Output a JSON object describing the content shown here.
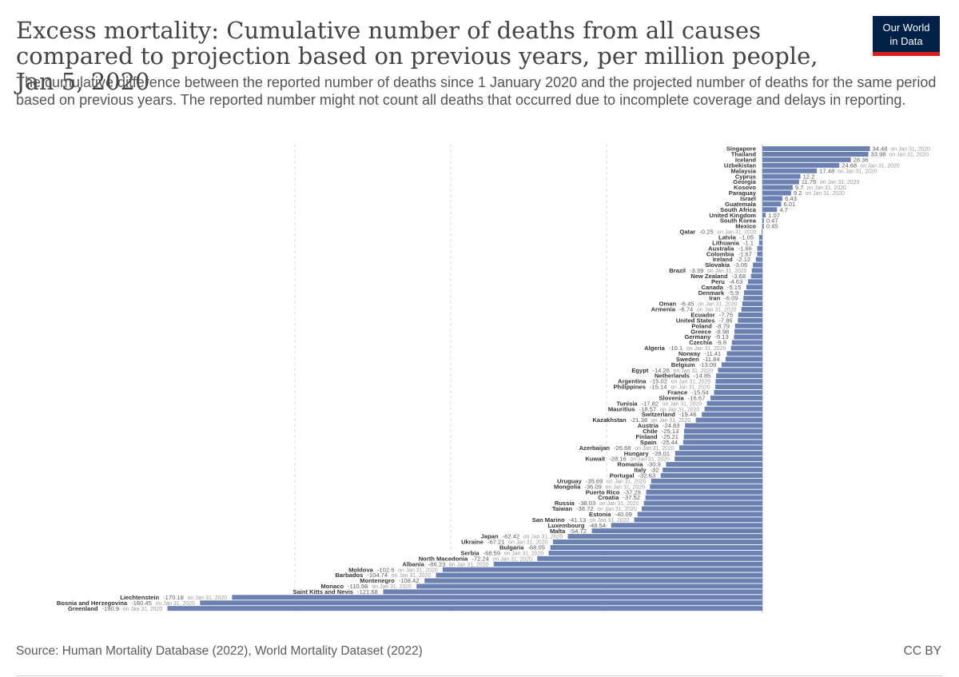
{
  "header": {
    "title": "Excess mortality: Cumulative number of deaths from all causes compared to projection based on previous years, per million people, Jan 5, 2020",
    "subtitle": "The cumulative difference between the reported number of deaths since 1 January 2020 and the projected number of deaths for the same period based on previous years. The reported number might not count all deaths that occurred due to incomplete coverage and delays in reporting.",
    "logo_line1": "Our World",
    "logo_line2": "in Data"
  },
  "footer": {
    "source": "Source: Human Mortality Database (2022), World Mortality Dataset (2022)",
    "license": "CC BY"
  },
  "colors": {
    "bar": "#6d80b2",
    "grid": "#dddddd",
    "label": "#333333",
    "value": "#5b5b5b",
    "note": "#999999",
    "logo_bg": "#002147",
    "logo_accent": "#dd1e1e"
  },
  "chart_data": {
    "type": "bar",
    "orientation": "horizontal",
    "grid": true,
    "grid_lines_at": [
      -150,
      -100,
      -50
    ],
    "xlim": [
      -190.9,
      34.48
    ],
    "categories": [
      "Singapore",
      "Thailand",
      "Iceland",
      "Uzbekistan",
      "Malaysia",
      "Cyprus",
      "Georgia",
      "Kosovo",
      "Paraguay",
      "Israel",
      "Guatemala",
      "South Africa",
      "United Kingdom",
      "South Korea",
      "Mexico",
      "Qatar",
      "Latvia",
      "Lithuania",
      "Australia",
      "Colombia",
      "Ireland",
      "Slovakia",
      "Brazil",
      "New Zealand",
      "Peru",
      "Canada",
      "Denmark",
      "Iran",
      "Oman",
      "Armenia",
      "Ecuador",
      "United States",
      "Poland",
      "Greece",
      "Germany",
      "Czechia",
      "Algeria",
      "Norway",
      "Sweden",
      "Belgium",
      "Egypt",
      "Netherlands",
      "Argentina",
      "Philippines",
      "France",
      "Slovenia",
      "Tunisia",
      "Mauritius",
      "Switzerland",
      "Kazakhstan",
      "Austria",
      "Chile",
      "Finland",
      "Spain",
      "Azerbaijan",
      "Hungary",
      "Kuwait",
      "Romania",
      "Italy",
      "Portugal",
      "Uruguay",
      "Mongolia",
      "Puerto Rico",
      "Croatia",
      "Russia",
      "Taiwan",
      "Estonia",
      "San Marino",
      "Luxembourg",
      "Malta",
      "Japan",
      "Ukraine",
      "Bulgaria",
      "Serbia",
      "North Macedonia",
      "Albania",
      "Moldova",
      "Barbados",
      "Montenegro",
      "Monaco",
      "Saint Kitts and Nevis",
      "Liechtenstein",
      "Bosnia and Herzegovina",
      "Greenland"
    ],
    "values": [
      34.48,
      33.98,
      28.36,
      24.68,
      17.48,
      12.2,
      11.76,
      9.7,
      9.2,
      6.43,
      6.01,
      4.7,
      1.07,
      0.47,
      0.45,
      -0.25,
      -1.05,
      -1.1,
      -1.66,
      -1.67,
      -2.12,
      -3.06,
      -3.39,
      -3.68,
      -4.63,
      -5.15,
      -5.9,
      -6.09,
      -6.45,
      -6.74,
      -7.75,
      -7.86,
      -8.79,
      -8.98,
      -9.13,
      -9.8,
      -10.1,
      -11.41,
      -11.84,
      -13.09,
      -14.26,
      -14.85,
      -15.02,
      -15.14,
      -15.54,
      -16.67,
      -17.82,
      -18.57,
      -19.46,
      -21.38,
      -24.83,
      -25.13,
      -25.21,
      -25.44,
      -26.68,
      -28.01,
      -28.16,
      -30.9,
      -32,
      -32.63,
      -35.69,
      -36.09,
      -37.29,
      -37.52,
      -38.03,
      -38.72,
      -40.09,
      -41.13,
      -48.54,
      -54.72,
      -62.42,
      -67.21,
      -68.05,
      -68.59,
      -72.24,
      -86.23,
      -102.6,
      -104.74,
      -108.42,
      -110.98,
      -121.68,
      -170.18,
      -180.45,
      -190.9
    ],
    "value_labels": [
      "34.48",
      "33.98",
      "28.36",
      "24.68",
      "17.48",
      "12.2",
      "11.76",
      "9.7",
      "9.2",
      "6.43",
      "6.01",
      "4.7",
      "1.07",
      "0.47",
      "0.45",
      "-0.25",
      "-1.05",
      "-1.1",
      "-1.66",
      "-1.67",
      "-2.12",
      "-3.06",
      "-3.39",
      "-3.68",
      "-4.63",
      "-5.15",
      "-5.9",
      "-6.09",
      "-6.45",
      "-6.74",
      "-7.75",
      "-7.86",
      "-8.79",
      "-8.98",
      "-9.13",
      "-9.8",
      "-10.1",
      "-11.41",
      "-11.84",
      "-13.09",
      "-14.26",
      "-14.85",
      "-15.02",
      "-15.14",
      "-15.54",
      "-16.67",
      "-17.82",
      "-18.57",
      "-19.46",
      "-21.38",
      "-24.83",
      "-25.13",
      "-25.21",
      "-25.44",
      "-26.68",
      "-28.01",
      "-28.16",
      "-30.9",
      "-32",
      "-32.63",
      "-35.69",
      "-36.09",
      "-37.29",
      "-37.52",
      "-38.03",
      "-38.72",
      "-40.09",
      "-41.13",
      "-48.54",
      "-54.72",
      "-62.42",
      "-67.21",
      "-68.05",
      "-68.59",
      "-72.24",
      "-86.23",
      "-102.6",
      "-104.74",
      "-108.42",
      "-110.98",
      "-121.68",
      "-170.18",
      "-180.45",
      "-190.9"
    ],
    "notes": [
      "on Jan 31, 2020",
      "on Jan 31, 2020",
      "",
      "on Jan 31, 2020",
      "on Jan 31, 2020",
      "",
      "on Jan 31, 2020",
      "on Jan 31, 2020",
      "on Jan 31, 2020",
      "",
      "",
      "",
      "",
      "",
      "",
      "on Jan 31, 2020",
      "",
      "",
      "",
      "",
      "",
      "",
      "on Jan 31, 2020",
      "",
      "",
      "",
      "",
      "",
      "on Jan 31, 2020",
      "on Jan 31, 2020",
      "",
      "",
      "",
      "",
      "",
      "",
      "on Jan 31, 2020",
      "",
      "",
      "",
      "on Jan 31, 2020",
      "",
      "on Jan 31, 2020",
      "on Jan 31, 2020",
      "",
      "",
      "on Jan 31, 2020",
      "on Jan 31, 2020",
      "",
      "on Jan 31, 2020",
      "",
      "",
      "",
      "",
      "on Jan 31, 2020",
      "",
      "on Jan 31, 2020",
      "",
      "",
      "",
      "on Jan 31, 2020",
      "on Jan 31, 2020",
      "",
      "",
      "on Jan 31, 2020",
      "on Jan 31, 2020",
      "",
      "on Jan 31, 2020",
      "",
      "",
      "on Jan 31, 2020",
      "on Jan 31, 2020",
      "",
      "on Jan 31, 2020",
      "on Jan 31, 2020",
      "on Jan 31, 2020",
      "on Jan 31, 2020",
      "on Jan 31, 2020",
      "",
      "on Jan 31, 2020",
      "",
      "on Jan 31, 2020",
      "on Jan 31, 2020",
      "on Jan 31, 2020"
    ]
  }
}
